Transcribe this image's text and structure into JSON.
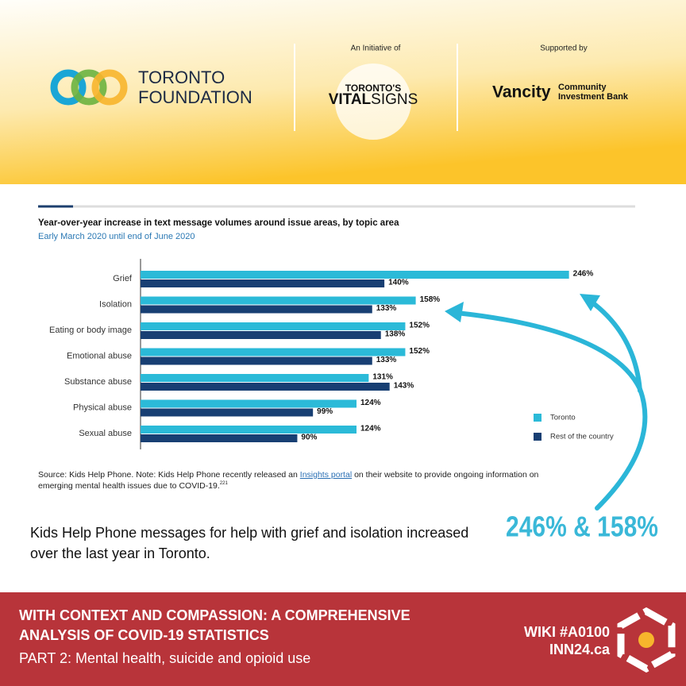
{
  "header": {
    "foundation": [
      "TORONTO",
      "FOUNDATION"
    ],
    "initiative_label": "An Initiative of",
    "vital_signs": {
      "line1": "TORONTO'S",
      "vital": "VITAL",
      "signs": "SIGNS"
    },
    "supported_label": "Supported by",
    "vancity": {
      "name": "Vancity",
      "line1": "Community",
      "line2": "Investment Bank"
    }
  },
  "chart_data": {
    "type": "bar",
    "orientation": "horizontal",
    "title": "Year-over-year increase in text message volumes around issue areas, by topic area",
    "subtitle": "Early March 2020 until end of June 2020",
    "categories": [
      "Grief",
      "Isolation",
      "Eating or body image",
      "Emotional abuse",
      "Substance abuse",
      "Physical abuse",
      "Sexual abuse"
    ],
    "series": [
      {
        "name": "Toronto",
        "color": "#2bbad8",
        "values": [
          246,
          158,
          152,
          152,
          131,
          124,
          124
        ],
        "value_labels": [
          "246%",
          "158%",
          "152%",
          "152%",
          "131%",
          "124%",
          "124%"
        ]
      },
      {
        "name": "Rest of the country",
        "color": "#183f73",
        "values": [
          140,
          133,
          138,
          133,
          143,
          99,
          90
        ],
        "value_labels": [
          "140%",
          "133%",
          "138%",
          "133%",
          "143%",
          "99%",
          "90%"
        ]
      }
    ],
    "xlim": [
      0,
      284
    ],
    "legend": "lower right"
  },
  "source": {
    "before": "Source: Kids Help Phone. Note: Kids Help Phone recently released an ",
    "link": "Insights portal",
    "after": " on their website to provide ongoing information on",
    "line2": "emerging mental health issues due to COVID-19.",
    "ref": "221"
  },
  "caption": {
    "line1": "Kids Help Phone messages for help with grief and isolation increased",
    "highlight": "246% & 158%",
    "line2": "over the last year in Toronto."
  },
  "footer": {
    "title1": "WITH CONTEXT AND COMPASSION: A COMPREHENSIVE",
    "title2": "ANALYSIS OF COVID-19 STATISTICS",
    "part": "PART 2: Mental health, suicide and opioid use",
    "wiki": "WIKI #A0100",
    "site": "INN24.ca"
  }
}
